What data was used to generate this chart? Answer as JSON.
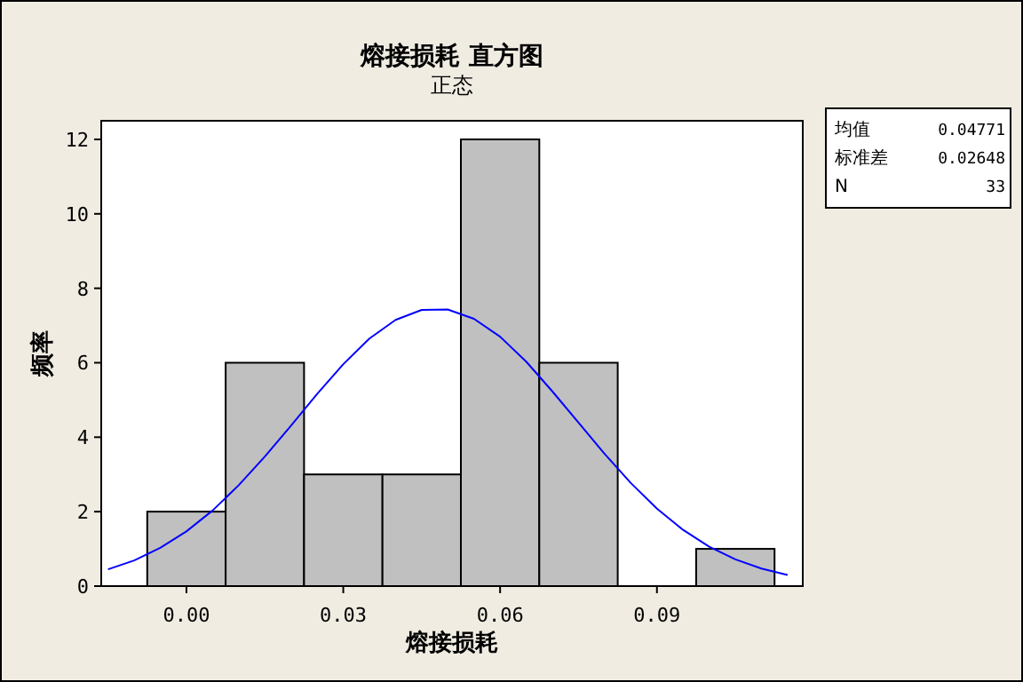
{
  "chart_data": {
    "type": "histogram",
    "title": "熔接损耗  直方图",
    "subtitle": "正态",
    "xlabel": "熔接损耗",
    "ylabel": "频率",
    "bins": [
      -0.0075,
      0.0075,
      0.0225,
      0.0375,
      0.0525,
      0.0675,
      0.0825,
      0.0975,
      0.1125
    ],
    "values": [
      2,
      6,
      3,
      3,
      12,
      6,
      0,
      1
    ],
    "color": "#c0c0c0",
    "series": [
      {
        "type": "line",
        "color": "#0000ff",
        "x": [
          -0.015,
          -0.01,
          -0.005,
          0,
          0.005,
          0.01,
          0.015,
          0.02,
          0.025,
          0.03,
          0.035,
          0.04,
          0.045,
          0.05,
          0.055,
          0.06,
          0.065,
          0.07,
          0.075,
          0.08,
          0.085,
          0.09,
          0.095,
          0.1,
          0.105,
          0.11,
          0.115
        ],
        "values": [
          0.45,
          0.69,
          1.03,
          1.47,
          2.03,
          2.71,
          3.48,
          4.31,
          5.16,
          5.96,
          6.65,
          7.15,
          7.42,
          7.43,
          7.18,
          6.7,
          6.03,
          5.23,
          4.39,
          3.55,
          2.77,
          2.08,
          1.51,
          1.06,
          0.72,
          0.47,
          0.3
        ]
      }
    ],
    "xlim": [
      -0.0163,
      0.1179
    ],
    "xticks": [
      {
        "value": 0,
        "label": "0.00"
      },
      {
        "value": 0.03,
        "label": "0.03"
      },
      {
        "value": 0.06,
        "label": "0.06"
      },
      {
        "value": 0.09,
        "label": "0.09"
      }
    ],
    "ylim": [
      0,
      12.5
    ],
    "yticks": [
      0,
      2,
      4,
      6,
      8,
      10,
      12
    ],
    "grid": false,
    "annotations": [
      "均值 0.04771",
      "标准差 0.02648",
      "N 33"
    ]
  }
}
